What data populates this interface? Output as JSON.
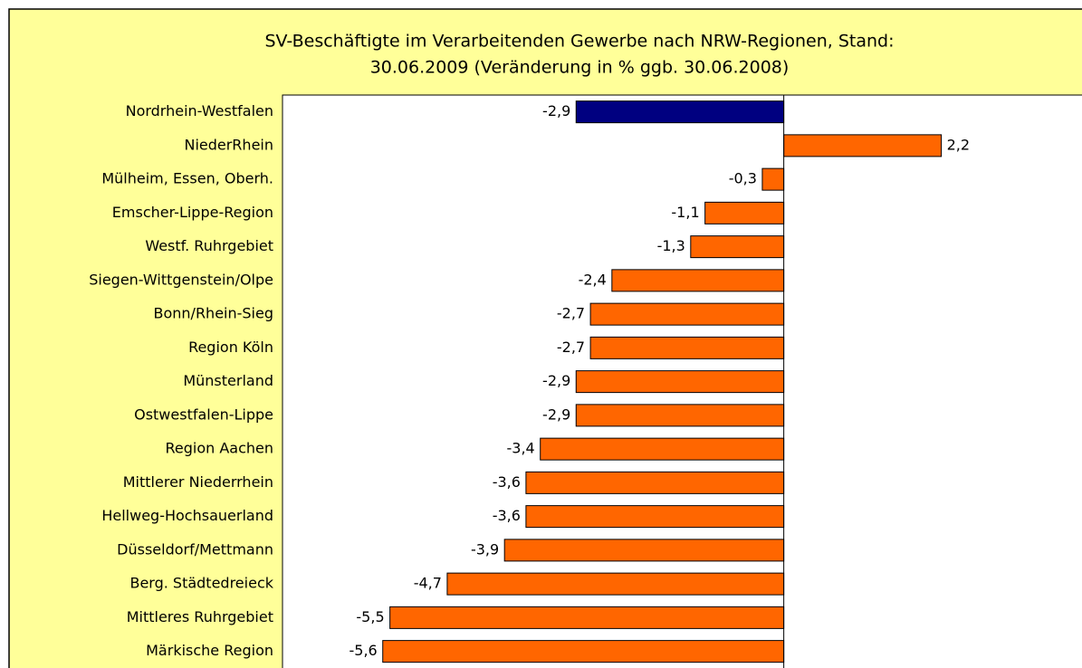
{
  "chart_data": {
    "type": "hbar",
    "title": [
      "SV-Beschäftigte im Verarbeitenden Gewerbe nach NRW-Regionen, Stand:",
      "30.06.2009 (Veränderung in % ggb. 30.06.2008)"
    ],
    "categories": [
      "Nordrhein-Westfalen",
      "NiederRhein",
      "Mülheim, Essen, Oberh.",
      "Emscher-Lippe-Region",
      "Westf. Ruhrgebiet",
      "Siegen-Wittgenstein/Olpe",
      "Bonn/Rhein-Sieg",
      "Region Köln",
      "Münsterland",
      "Ostwestfalen-Lippe",
      "Region Aachen",
      "Mittlerer Niederrhein",
      "Hellweg-Hochsauerland",
      "Düsseldorf/Mettmann",
      "Berg. Städtedreieck",
      "Mittleres Ruhrgebiet",
      "Märkische Region"
    ],
    "values": [
      -2.9,
      2.2,
      -0.3,
      -1.1,
      -1.3,
      -2.4,
      -2.7,
      -2.7,
      -2.9,
      -2.9,
      -3.4,
      -3.6,
      -3.6,
      -3.9,
      -4.7,
      -5.5,
      -5.6
    ],
    "value_labels": [
      "-2,9",
      "2,2",
      "-0,3",
      "-1,1",
      "-1,3",
      "-2,4",
      "-2,7",
      "-2,7",
      "-2,9",
      "-2,9",
      "-3,4",
      "-3,6",
      "-3,6",
      "-3,9",
      "-4,7",
      "-5,5",
      "-5,6"
    ],
    "colors": [
      "#000080",
      "#ff6600",
      "#ff6600",
      "#ff6600",
      "#ff6600",
      "#ff6600",
      "#ff6600",
      "#ff6600",
      "#ff6600",
      "#ff6600",
      "#ff6600",
      "#ff6600",
      "#ff6600",
      "#ff6600",
      "#ff6600",
      "#ff6600",
      "#ff6600"
    ],
    "xlim": [
      -7,
      4
    ]
  }
}
